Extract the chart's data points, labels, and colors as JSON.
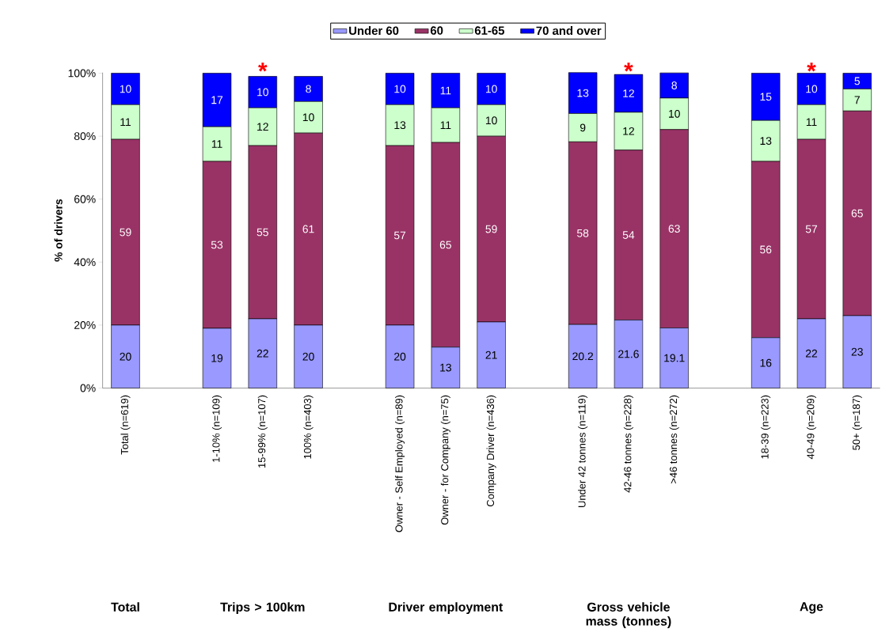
{
  "chart_data": {
    "type": "bar",
    "stacked": true,
    "ylabel": "% of drivers",
    "categories": [
      "Total (n=619)",
      null,
      "1-10% (n=109)",
      "15-99% (n=107)",
      "100% (n=403)",
      null,
      "Owner - Self Employed (n=89)",
      "Owner - for Company (n=75)",
      "Company Driver (n=436)",
      null,
      "Under 42 tonnes (n=119)",
      "42-46 tonnes (n=228)",
      ">46 tonnes (n=272)",
      null,
      "18-39 (n=223)",
      "40-49 (n=209)",
      "50+ (n=187)"
    ],
    "series": [
      {
        "name": "Under 60",
        "color": "#9999ff",
        "values": [
          20,
          null,
          19,
          22,
          20,
          null,
          20,
          13,
          21,
          null,
          20.2,
          21.6,
          19.1,
          null,
          16,
          22,
          23
        ]
      },
      {
        "name": "60",
        "color": "#993366",
        "values": [
          59,
          null,
          53,
          55,
          61,
          null,
          57,
          65,
          59,
          null,
          58,
          54,
          63,
          null,
          56,
          57,
          65
        ]
      },
      {
        "name": "61-65",
        "color": "#ccffcc",
        "values": [
          11,
          null,
          11,
          12,
          10,
          null,
          13,
          11,
          10,
          null,
          9,
          12,
          10,
          null,
          13,
          11,
          7
        ]
      },
      {
        "name": "70 and over",
        "color": "#0000ff",
        "values": [
          10,
          null,
          17,
          10,
          8,
          null,
          10,
          11,
          10,
          null,
          13,
          12,
          8,
          null,
          15,
          10,
          5
        ]
      }
    ],
    "ylim": [
      0,
      100.2
    ],
    "yticks": [
      {
        "value": 0,
        "label": "0%"
      },
      {
        "value": 20,
        "label": "20%"
      },
      {
        "value": 40,
        "label": "40%"
      },
      {
        "value": 60,
        "label": "60%"
      },
      {
        "value": 80,
        "label": "80%"
      },
      {
        "value": 100,
        "label": "100%"
      }
    ],
    "data_labels": true,
    "legend": "top",
    "annotations": [
      "Total",
      "Trips > 100km",
      "Driver employment",
      "Gross vehicle mass (tonnes)",
      "Age",
      {
        "text": "*",
        "x": "15-99% (n=107)",
        "y": 100
      },
      {
        "text": "*",
        "x": "42-46 tonnes (n=228)",
        "y": 100
      },
      {
        "text": "*",
        "x": "40-49 (n=209)",
        "y": 100
      }
    ]
  }
}
